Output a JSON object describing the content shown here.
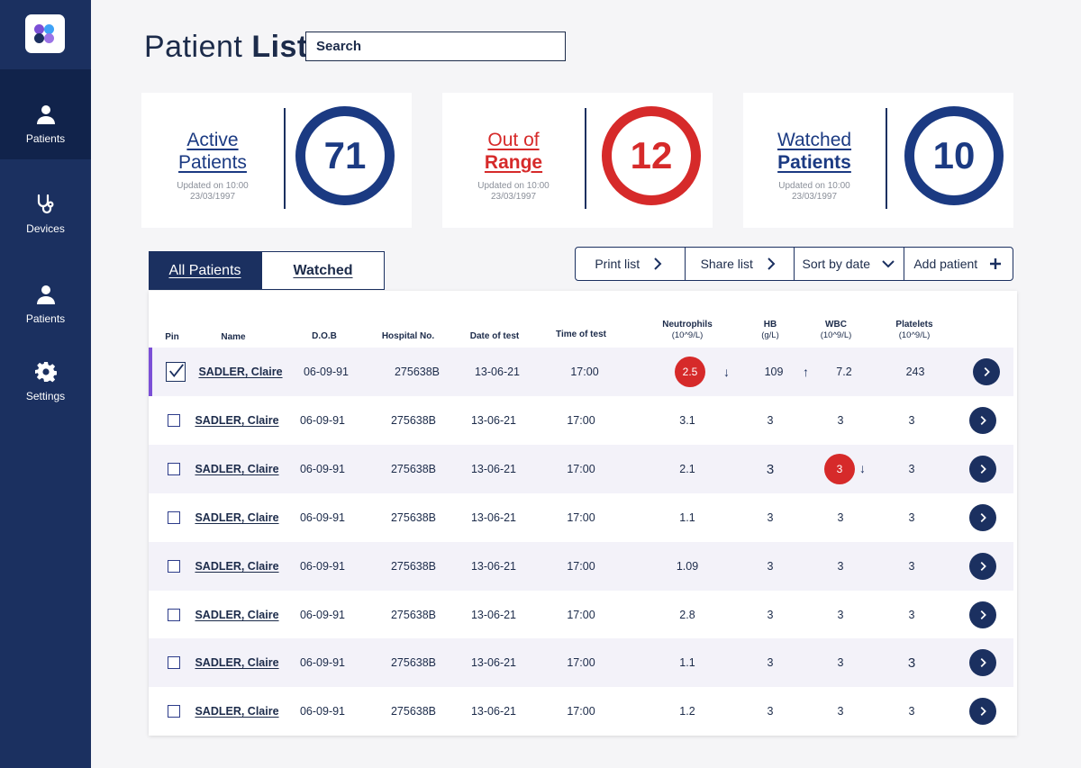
{
  "sidebar": {
    "logo_colors": [
      "#7b4fd6",
      "#3fa2f7",
      "#1b3060",
      "#9b73e6"
    ],
    "items": [
      {
        "label": "Patients",
        "icon": "person-icon",
        "active": true
      },
      {
        "label": "Devices",
        "icon": "stethoscope-icon",
        "active": false
      },
      {
        "label": "Patients",
        "icon": "person-icon",
        "active": false
      },
      {
        "label": "Settings",
        "icon": "gear-icon",
        "active": false
      }
    ]
  },
  "header": {
    "title_light": "Patient",
    "title_bold": "List",
    "search_placeholder": "Search"
  },
  "cards": [
    {
      "title_line1": "Active",
      "title_line2": "Patients",
      "updated_line1": "Updated on 10:00",
      "updated_line2": "23/03/1997",
      "value": "71",
      "color": "#1b3a82"
    },
    {
      "title_line1": "Out of",
      "title_line2": "Range",
      "updated_line1": "Updated on 10:00",
      "updated_line2": "23/03/1997",
      "value": "12",
      "color": "#d62a2a"
    },
    {
      "title_line1": "Watched",
      "title_line2": "Patients",
      "updated_line1": "Updated on 10:00",
      "updated_line2": "23/03/1997",
      "value": "10",
      "color": "#1b3a82"
    }
  ],
  "tabs": [
    {
      "label": "All Patients",
      "active": true
    },
    {
      "label": "Watched",
      "active": false
    }
  ],
  "actions": [
    {
      "label": "Print list",
      "icon": "chevron-right-icon"
    },
    {
      "label": "Share list",
      "icon": "chevron-right-icon"
    },
    {
      "label": "Sort by date",
      "icon": "chevron-down-icon"
    },
    {
      "label": "Add patient",
      "icon": "plus-icon"
    }
  ],
  "table": {
    "headers": {
      "pin": "Pin",
      "name": "Name",
      "dob": "D.O.B",
      "hospital": "Hospital No.",
      "date": "Date of test",
      "time": "Time of test",
      "neutrophils": "Neutrophils",
      "neutrophils_unit": "(10^9/L)",
      "hb": "HB",
      "hb_unit": "(g/L)",
      "wbc": "WBC",
      "wbc_unit": "(10^9/L)",
      "platelets": "Platelets",
      "platelets_unit": "(10^9/L)"
    },
    "rows": [
      {
        "pinned": true,
        "name": "SADLER, Claire",
        "dob": "06-09-91",
        "hospital": "275638B",
        "date": "13-06-21",
        "time": "17:00",
        "neutrophils": "2.5",
        "neutrophils_flag": "low",
        "hb": "109",
        "hb_trend": "up",
        "wbc": "7.2",
        "wbc_flag": "",
        "platelets": "243"
      },
      {
        "pinned": false,
        "name": "SADLER, Claire",
        "dob": "06-09-91",
        "hospital": "275638B",
        "date": "13-06-21",
        "time": "17:00",
        "neutrophils": "3.1",
        "neutrophils_flag": "",
        "hb": "3",
        "hb_trend": "",
        "wbc": "3",
        "wbc_flag": "",
        "platelets": "3"
      },
      {
        "pinned": false,
        "name": "SADLER, Claire",
        "dob": "06-09-91",
        "hospital": "275638B",
        "date": "13-06-21",
        "time": "17:00",
        "neutrophils": "2.1",
        "neutrophils_flag": "",
        "hb": "3",
        "hb_trend": "",
        "wbc": "3",
        "wbc_flag": "low",
        "platelets": "3"
      },
      {
        "pinned": false,
        "name": "SADLER, Claire",
        "dob": "06-09-91",
        "hospital": "275638B",
        "date": "13-06-21",
        "time": "17:00",
        "neutrophils": "1.1",
        "neutrophils_flag": "",
        "hb": "3",
        "hb_trend": "",
        "wbc": "3",
        "wbc_flag": "",
        "platelets": "3"
      },
      {
        "pinned": false,
        "name": "SADLER, Claire",
        "dob": "06-09-91",
        "hospital": "275638B",
        "date": "13-06-21",
        "time": "17:00",
        "neutrophils": "1.09",
        "neutrophils_flag": "",
        "hb": "3",
        "hb_trend": "",
        "wbc": "3",
        "wbc_flag": "",
        "platelets": "3"
      },
      {
        "pinned": false,
        "name": "SADLER, Claire",
        "dob": "06-09-91",
        "hospital": "275638B",
        "date": "13-06-21",
        "time": "17:00",
        "neutrophils": "2.8",
        "neutrophils_flag": "",
        "hb": "3",
        "hb_trend": "",
        "wbc": "3",
        "wbc_flag": "",
        "platelets": "3"
      },
      {
        "pinned": false,
        "name": "SADLER, Claire",
        "dob": "06-09-91",
        "hospital": "275638B",
        "date": "13-06-21",
        "time": "17:00",
        "neutrophils": "1.1",
        "neutrophils_flag": "",
        "hb": "3",
        "hb_trend": "",
        "wbc": "3",
        "wbc_flag": "",
        "platelets": "3"
      },
      {
        "pinned": false,
        "name": "SADLER, Claire",
        "dob": "06-09-91",
        "hospital": "275638B",
        "date": "13-06-21",
        "time": "17:00",
        "neutrophils": "1.2",
        "neutrophils_flag": "",
        "hb": "3",
        "hb_trend": "",
        "wbc": "3",
        "wbc_flag": "",
        "platelets": "3"
      }
    ]
  }
}
